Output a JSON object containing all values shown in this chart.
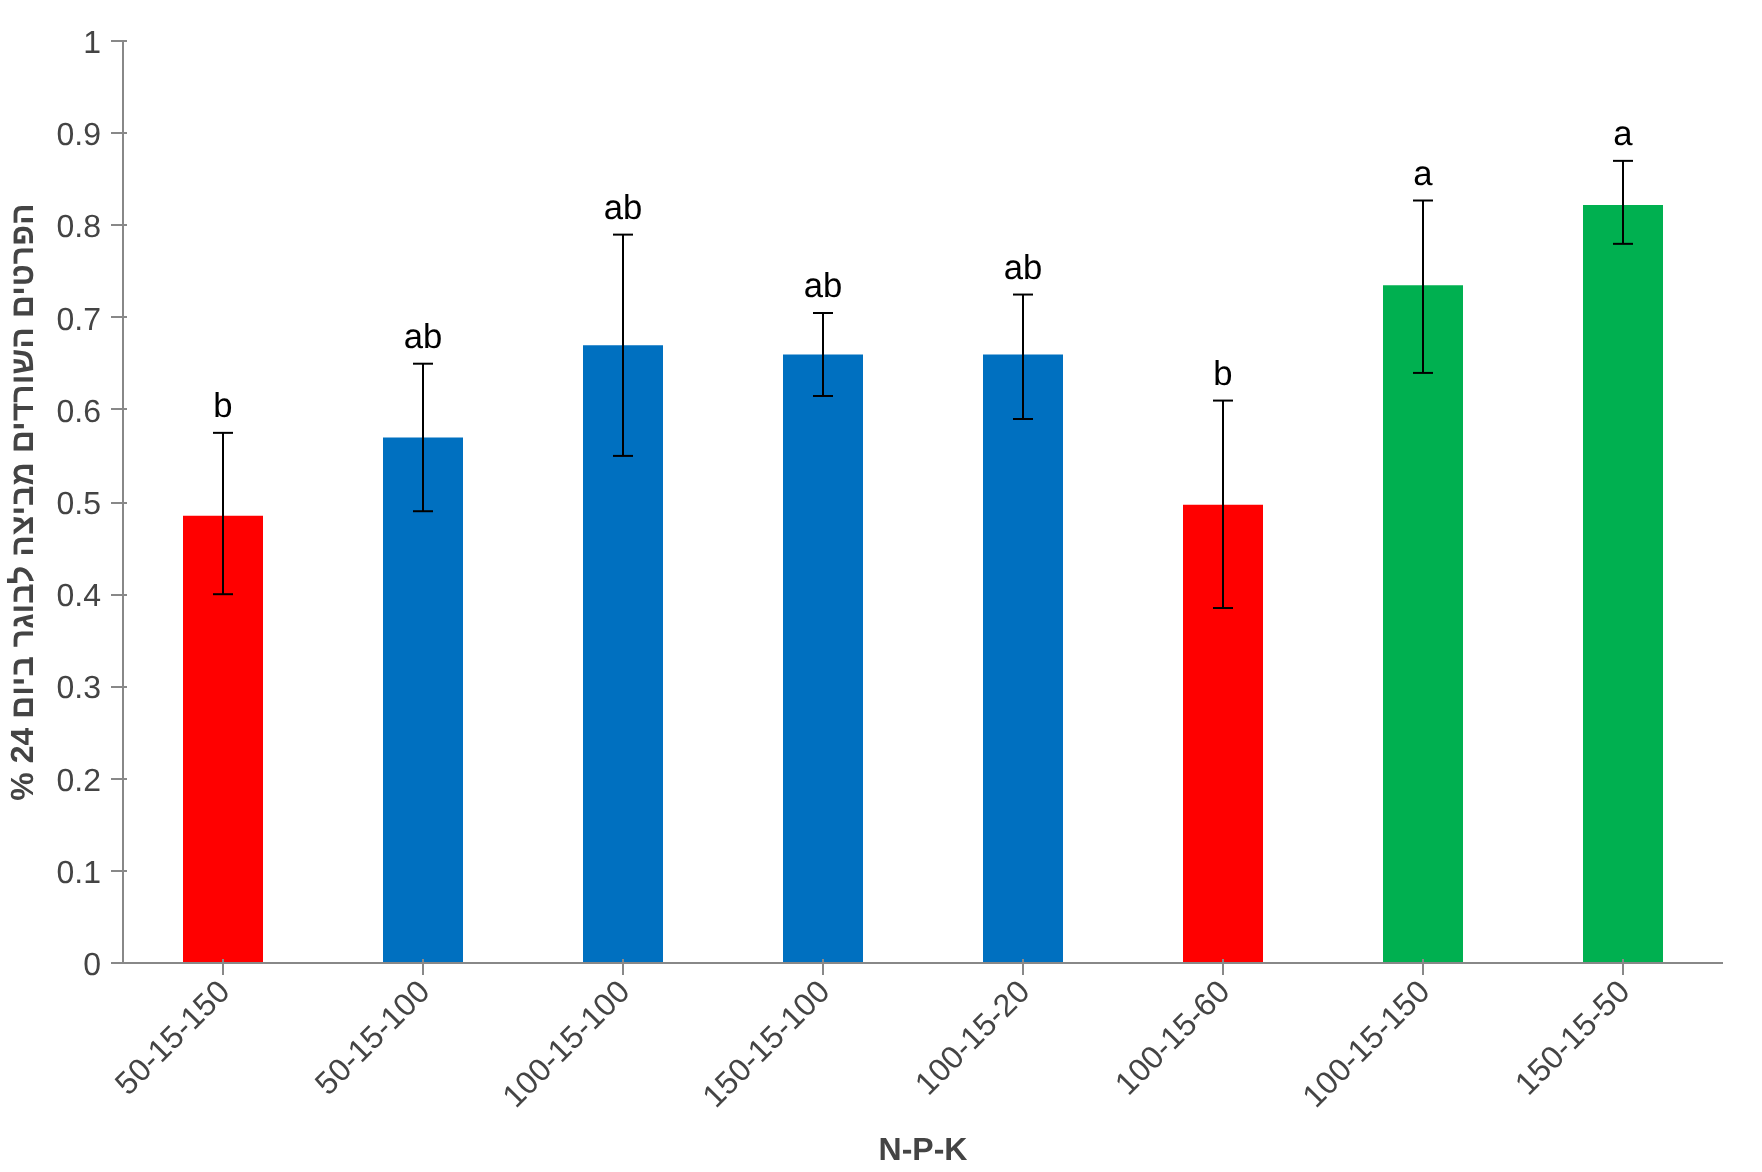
{
  "chart_data": {
    "type": "bar",
    "xlabel": "N-P-K",
    "ylabel": "% הפרטים השורדים מביצה לבוגר ביום 24",
    "categories": [
      "50-15-150",
      "50-15-100",
      "100-15-100",
      "150-15-100",
      "100-15-20",
      "100-15-60",
      "100-15-150",
      "150-15-50"
    ],
    "values": [
      0.485,
      0.57,
      0.67,
      0.66,
      0.66,
      0.497,
      0.735,
      0.822
    ],
    "colors": [
      "#ff0000",
      "#0070c0",
      "#0070c0",
      "#0070c0",
      "#0070c0",
      "#ff0000",
      "#00b050",
      "#00b050"
    ],
    "errors": [
      [
        0.4,
        0.575
      ],
      [
        0.49,
        0.65
      ],
      [
        0.55,
        0.79
      ],
      [
        0.615,
        0.705
      ],
      [
        0.59,
        0.725
      ],
      [
        0.385,
        0.61
      ],
      [
        0.64,
        0.827
      ],
      [
        0.78,
        0.87
      ]
    ],
    "ylim": [
      0,
      1
    ],
    "yticks": [
      0,
      0.1,
      0.2,
      0.3,
      0.4,
      0.5,
      0.6,
      0.7,
      0.8,
      0.9,
      1
    ],
    "grid": false,
    "annotations": [
      {
        "text": "b",
        "x": "50-15-150",
        "y": 0.575
      },
      {
        "text": "ab",
        "x": "50-15-100",
        "y": 0.65
      },
      {
        "text": "ab",
        "x": "100-15-100",
        "y": 0.79
      },
      {
        "text": "ab",
        "x": "150-15-100",
        "y": 0.705
      },
      {
        "text": "ab",
        "x": "100-15-20",
        "y": 0.725
      },
      {
        "text": "b",
        "x": "100-15-60",
        "y": 0.61
      },
      {
        "text": "a",
        "x": "100-15-150",
        "y": 0.827
      },
      {
        "text": "a",
        "x": "150-15-50",
        "y": 0.87
      }
    ]
  }
}
